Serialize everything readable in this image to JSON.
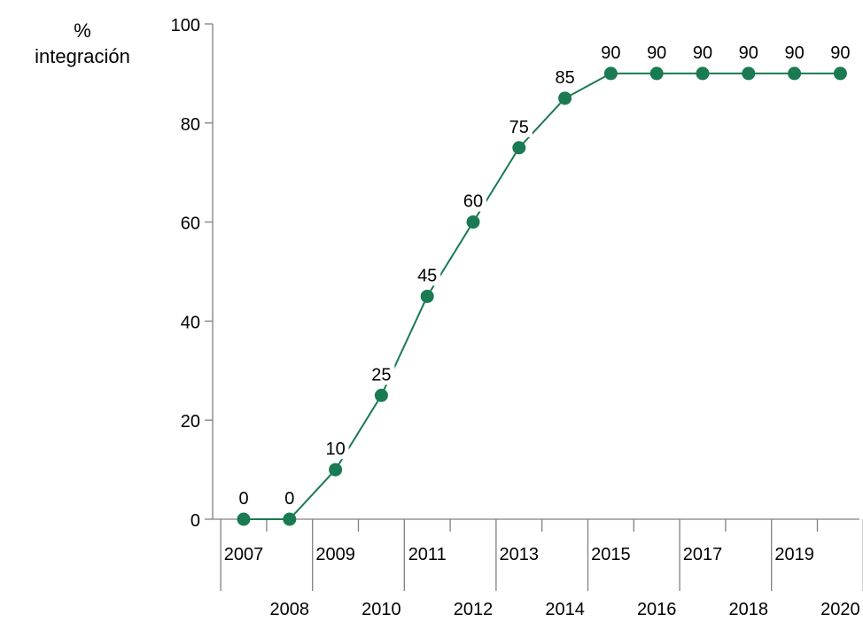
{
  "chart_data": {
    "type": "line",
    "ylabel": [
      "%",
      "integración"
    ],
    "xlabel": "",
    "x": [
      "2007",
      "2008",
      "2009",
      "2010",
      "2011",
      "2012",
      "2013",
      "2014",
      "2015",
      "2016",
      "2017",
      "2018",
      "2019",
      "2020"
    ],
    "series": [
      {
        "values": [
          0,
          0,
          10,
          25,
          45,
          60,
          75,
          85,
          90,
          90,
          90,
          90,
          90,
          90
        ]
      }
    ],
    "ylim": [
      0,
      100
    ],
    "yticks": [
      0,
      20,
      40,
      60,
      80,
      100
    ],
    "grid": false,
    "color": "#1a7a52"
  }
}
